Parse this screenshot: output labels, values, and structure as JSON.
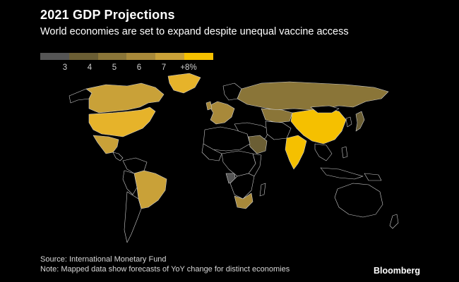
{
  "title": "2021 GDP Projections",
  "subtitle": "World economies are set to expand despite unequal vaccine access",
  "legend": {
    "colors": [
      "#555555",
      "#6b5e34",
      "#8a7538",
      "#a8893a",
      "#c9a138",
      "#f5c000"
    ],
    "labels": [
      "3",
      "4",
      "5",
      "6",
      "7",
      "+8%"
    ]
  },
  "regions": [
    {
      "name": "Canada",
      "color": "#c9a138"
    },
    {
      "name": "United States",
      "color": "#e6b32a"
    },
    {
      "name": "Mexico",
      "color": "#c9a138"
    },
    {
      "name": "Greenland",
      "color": "#e6b32a"
    },
    {
      "name": "Brazil",
      "color": "#c9a138"
    },
    {
      "name": "Russia",
      "color": "#8a7538"
    },
    {
      "name": "Kazakhstan",
      "color": "#8a7538"
    },
    {
      "name": "Europe",
      "color": "#a8893a"
    },
    {
      "name": "China",
      "color": "#f5c000"
    },
    {
      "name": "India",
      "color": "#f5c000"
    },
    {
      "name": "Japan",
      "color": "#6b5e34"
    },
    {
      "name": "Saudi Arabia",
      "color": "#6b5e34"
    },
    {
      "name": "South Africa",
      "color": "#a8893a"
    },
    {
      "name": "Angola",
      "color": "#555555"
    }
  ],
  "footer": {
    "source": "Source: International Monetary Fund",
    "note": "Note: Mapped data show forecasts of YoY change for distinct economies"
  },
  "brand": "Bloomberg"
}
